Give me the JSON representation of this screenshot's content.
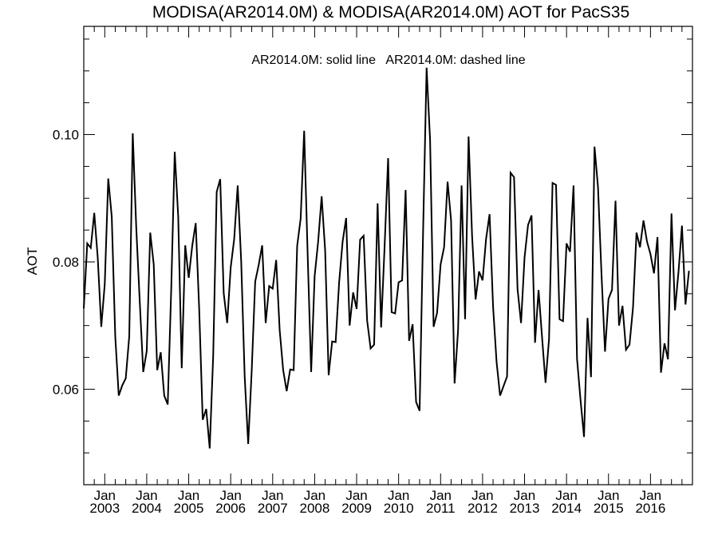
{
  "chart_data": {
    "type": "line",
    "title": "MODISA(AR2014.0M) & MODISA(AR2014.0M)  AOT for PacS35",
    "annotation": "AR2014.0M: solid line   AR2014.0M: dashed line",
    "ylabel": "AOT",
    "xlabel": "",
    "x_start": "2002-07",
    "x_end": "2017-01",
    "ylim": [
      0.045,
      0.117
    ],
    "yticks": [
      0.06,
      0.08,
      0.1
    ],
    "ytick_labels": [
      "0.06",
      "0.08",
      "0.10"
    ],
    "xtick_labels": [
      {
        "month": "Jan",
        "year": "2003",
        "date": "2003-01"
      },
      {
        "month": "Jan",
        "year": "2004",
        "date": "2004-01"
      },
      {
        "month": "Jan",
        "year": "2005",
        "date": "2005-01"
      },
      {
        "month": "Jan",
        "year": "2006",
        "date": "2006-01"
      },
      {
        "month": "Jan",
        "year": "2007",
        "date": "2007-01"
      },
      {
        "month": "Jan",
        "year": "2008",
        "date": "2008-01"
      },
      {
        "month": "Jan",
        "year": "2009",
        "date": "2009-01"
      },
      {
        "month": "Jan",
        "year": "2010",
        "date": "2010-01"
      },
      {
        "month": "Jan",
        "year": "2011",
        "date": "2011-01"
      },
      {
        "month": "Jan",
        "year": "2012",
        "date": "2012-01"
      },
      {
        "month": "Jan",
        "year": "2013",
        "date": "2013-01"
      },
      {
        "month": "Jan",
        "year": "2014",
        "date": "2014-01"
      },
      {
        "month": "Jan",
        "year": "2015",
        "date": "2015-01"
      },
      {
        "month": "Jan",
        "year": "2016",
        "date": "2016-01"
      }
    ],
    "grid": false,
    "series": [
      {
        "line_style": "solid",
        "color": "#000000",
        "x": [
          "2002-07",
          "2002-08",
          "2002-09",
          "2002-10",
          "2002-11",
          "2002-12",
          "2003-01",
          "2003-02",
          "2003-03",
          "2003-04",
          "2003-05",
          "2003-06",
          "2003-07",
          "2003-08",
          "2003-09",
          "2003-10",
          "2003-11",
          "2003-12",
          "2004-01",
          "2004-02",
          "2004-03",
          "2004-04",
          "2004-05",
          "2004-06",
          "2004-07",
          "2004-08",
          "2004-09",
          "2004-10",
          "2004-11",
          "2004-12",
          "2005-01",
          "2005-02",
          "2005-03",
          "2005-04",
          "2005-05",
          "2005-06",
          "2005-07",
          "2005-08",
          "2005-09",
          "2005-10",
          "2005-11",
          "2005-12",
          "2006-01",
          "2006-02",
          "2006-03",
          "2006-04",
          "2006-05",
          "2006-06",
          "2006-07",
          "2006-08",
          "2006-09",
          "2006-10",
          "2006-11",
          "2006-12",
          "2007-01",
          "2007-02",
          "2007-03",
          "2007-04",
          "2007-05",
          "2007-06",
          "2007-07",
          "2007-08",
          "2007-09",
          "2007-10",
          "2007-11",
          "2007-12",
          "2008-01",
          "2008-02",
          "2008-03",
          "2008-04",
          "2008-05",
          "2008-06",
          "2008-07",
          "2008-08",
          "2008-09",
          "2008-10",
          "2008-11",
          "2008-12",
          "2009-01",
          "2009-02",
          "2009-03",
          "2009-04",
          "2009-05",
          "2009-06",
          "2009-07",
          "2009-08",
          "2009-09",
          "2009-10",
          "2009-11",
          "2009-12",
          "2010-01",
          "2010-02",
          "2010-03",
          "2010-04",
          "2010-05",
          "2010-06",
          "2010-07",
          "2010-08",
          "2010-09",
          "2010-10",
          "2010-11",
          "2010-12",
          "2011-01",
          "2011-02",
          "2011-03",
          "2011-04",
          "2011-05",
          "2011-06",
          "2011-07",
          "2011-08",
          "2011-09",
          "2011-10",
          "2011-11",
          "2011-12",
          "2012-01",
          "2012-02",
          "2012-03",
          "2012-04",
          "2012-05",
          "2012-06",
          "2012-07",
          "2012-08",
          "2012-09",
          "2012-10",
          "2012-11",
          "2012-12",
          "2013-01",
          "2013-02",
          "2013-03",
          "2013-04",
          "2013-05",
          "2013-06",
          "2013-07",
          "2013-08",
          "2013-09",
          "2013-10",
          "2013-11",
          "2013-12",
          "2014-01",
          "2014-02",
          "2014-03",
          "2014-04",
          "2014-05",
          "2014-06",
          "2014-07",
          "2014-08",
          "2014-09",
          "2014-10",
          "2014-11",
          "2014-12",
          "2015-01",
          "2015-02",
          "2015-03",
          "2015-04",
          "2015-05",
          "2015-06",
          "2015-07",
          "2015-08",
          "2015-09",
          "2015-10",
          "2015-11",
          "2015-12",
          "2016-01",
          "2016-02",
          "2016-03",
          "2016-04",
          "2016-05",
          "2016-06",
          "2016-07",
          "2016-08",
          "2016-09",
          "2016-10",
          "2016-11",
          "2016-12"
        ],
        "y": [
          0.0727,
          0.0829,
          0.0822,
          0.0877,
          0.0806,
          0.0698,
          0.0765,
          0.0931,
          0.0871,
          0.0683,
          0.059,
          0.0606,
          0.0617,
          0.0683,
          0.1002,
          0.0854,
          0.0738,
          0.0627,
          0.066,
          0.0846,
          0.0796,
          0.063,
          0.0658,
          0.059,
          0.0576,
          0.0757,
          0.0973,
          0.0871,
          0.0633,
          0.0826,
          0.0775,
          0.0825,
          0.0861,
          0.0725,
          0.0552,
          0.0569,
          0.0507,
          0.0653,
          0.091,
          0.093,
          0.0751,
          0.0704,
          0.0791,
          0.0836,
          0.092,
          0.0801,
          0.062,
          0.0514,
          0.0628,
          0.0769,
          0.0795,
          0.0826,
          0.0704,
          0.0762,
          0.0758,
          0.0803,
          0.0693,
          0.063,
          0.0597,
          0.0631,
          0.063,
          0.0825,
          0.0868,
          0.1006,
          0.0812,
          0.0627,
          0.0778,
          0.0832,
          0.0903,
          0.0818,
          0.0622,
          0.0675,
          0.0674,
          0.0768,
          0.0832,
          0.0869,
          0.07,
          0.0752,
          0.0726,
          0.0835,
          0.0841,
          0.0708,
          0.0664,
          0.067,
          0.0892,
          0.0697,
          0.0825,
          0.0963,
          0.0721,
          0.0719,
          0.0768,
          0.0771,
          0.0913,
          0.0676,
          0.0702,
          0.058,
          0.0566,
          0.0848,
          0.1105,
          0.0991,
          0.0698,
          0.072,
          0.0796,
          0.0823,
          0.0926,
          0.0865,
          0.0609,
          0.0693,
          0.092,
          0.071,
          0.0997,
          0.0841,
          0.0741,
          0.0785,
          0.0771,
          0.0836,
          0.0875,
          0.073,
          0.0643,
          0.059,
          0.0605,
          0.062,
          0.094,
          0.0933,
          0.0757,
          0.0704,
          0.0807,
          0.0858,
          0.0873,
          0.0673,
          0.0756,
          0.0682,
          0.061,
          0.0679,
          0.0924,
          0.0921,
          0.071,
          0.0707,
          0.0829,
          0.0816,
          0.092,
          0.0648,
          0.0583,
          0.0525,
          0.0712,
          0.0619,
          0.0981,
          0.0917,
          0.078,
          0.0659,
          0.0742,
          0.0756,
          0.0896,
          0.07,
          0.0731,
          0.0662,
          0.067,
          0.0728,
          0.0846,
          0.0823,
          0.0865,
          0.0832,
          0.0812,
          0.0782,
          0.0839,
          0.0626,
          0.0672,
          0.0647,
          0.0876,
          0.0724,
          0.0784,
          0.0857,
          0.0733,
          0.0786
        ]
      }
    ]
  }
}
